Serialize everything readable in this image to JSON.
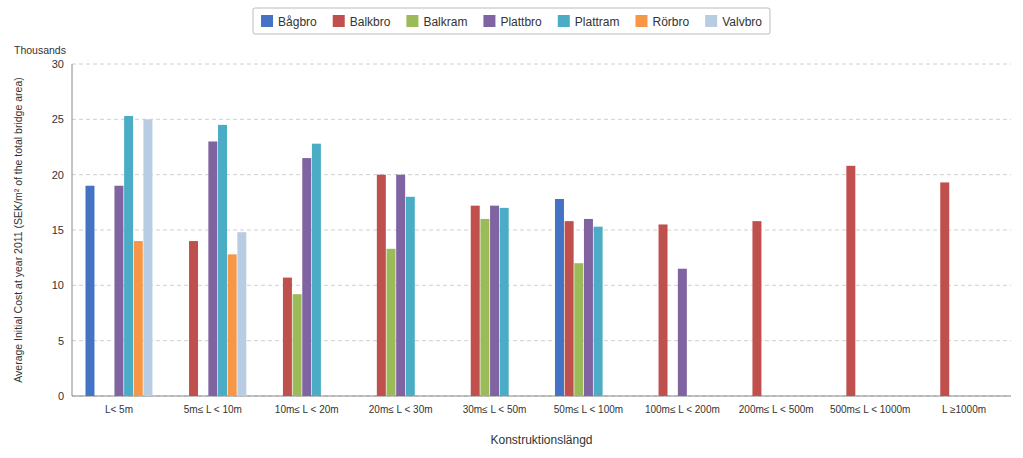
{
  "chart_data": {
    "type": "bar",
    "xlabel": "Konstruktionslängd",
    "ylabel": "Average Initial Cost at year 2011 (SEK/m² of the total bridge area)",
    "annotations": [
      "Thousands"
    ],
    "categories": [
      "L< 5m",
      "5m≤ L < 10m",
      "10m≤ L < 20m",
      "20m≤ L < 30m",
      "30m≤ L < 50m",
      "50m≤ L < 100m",
      "100m≤ L < 200m",
      "200m≤ L < 500m",
      "500m≤ L < 1000m",
      "L ≥1000m"
    ],
    "series": [
      {
        "name": "Bågbro",
        "color": "#4472C4",
        "values": [
          19.0,
          0,
          0,
          0,
          0,
          17.8,
          0,
          0,
          0,
          0
        ]
      },
      {
        "name": "Balkbro",
        "color": "#C0504D",
        "values": [
          0,
          14.0,
          10.7,
          20.0,
          17.2,
          15.8,
          15.5,
          15.8,
          20.8,
          19.3
        ]
      },
      {
        "name": "Balkram",
        "color": "#9BBB59",
        "values": [
          0,
          0,
          9.2,
          13.3,
          16.0,
          12.0,
          0,
          0,
          0,
          0
        ]
      },
      {
        "name": "Plattbro",
        "color": "#8064A2",
        "values": [
          19.0,
          23.0,
          21.5,
          20.0,
          17.2,
          16.0,
          11.5,
          0,
          0,
          0
        ]
      },
      {
        "name": "Plattram",
        "color": "#4BACC6",
        "values": [
          25.3,
          24.5,
          22.8,
          18.0,
          17.0,
          15.3,
          0,
          0,
          0,
          0
        ]
      },
      {
        "name": "Rörbro",
        "color": "#F79646",
        "values": [
          14.0,
          12.8,
          0,
          0,
          0,
          0,
          0,
          0,
          0,
          0
        ]
      },
      {
        "name": "Valvbro",
        "color": "#B8CCE4",
        "values": [
          25.0,
          14.8,
          0,
          0,
          0,
          0,
          0,
          0,
          0,
          0
        ]
      }
    ],
    "ylim": [
      0,
      30
    ],
    "yticks": [
      0,
      5,
      10,
      15,
      20,
      25,
      30
    ],
    "grid": true,
    "legend": "top"
  }
}
